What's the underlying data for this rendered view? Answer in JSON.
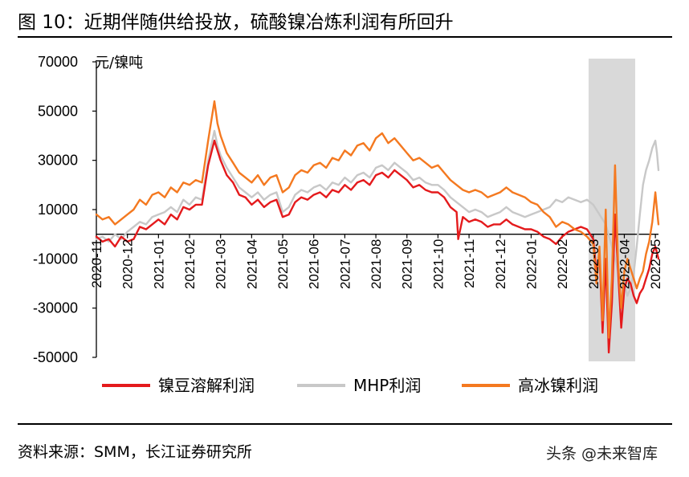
{
  "header": {
    "title": "图 10：近期伴随供给投放，硫酸镍冶炼利润有所回升"
  },
  "footer": {
    "source": "资料来源：SMM，长江证券研究所",
    "watermark": "头条 @未来智库"
  },
  "chart_data": {
    "type": "line",
    "ylabel": "元/镍吨",
    "ylim": [
      -50000,
      70000
    ],
    "yticks": [
      "70000",
      "50000",
      "30000",
      "10000",
      "-10000",
      "-30000",
      "-50000"
    ],
    "ytick_values": [
      70000,
      50000,
      30000,
      10000,
      -10000,
      -30000,
      -50000
    ],
    "xlim": [
      0,
      18.1
    ],
    "xticks": [
      "2020-11",
      "2020-12",
      "2021-01",
      "2021-02",
      "2021-03",
      "2021-04",
      "2021-05",
      "2021-06",
      "2021-07",
      "2021-08",
      "2021-09",
      "2021-10",
      "2021-11",
      "2021-12",
      "2022-01",
      "2022-02",
      "2022-03",
      "2022-04",
      "2022-05"
    ],
    "highlight": {
      "x_start": 15.85,
      "x_end": 17.35,
      "color": "#d9d9d9"
    },
    "legend_position": "bottom",
    "series": [
      {
        "name": "镍豆溶解利润",
        "color": "#e41a1c",
        "points": [
          [
            0,
            -1000
          ],
          [
            0.2,
            -3000
          ],
          [
            0.4,
            -2000
          ],
          [
            0.6,
            -5000
          ],
          [
            0.8,
            -1000
          ],
          [
            1,
            -3000
          ],
          [
            1.2,
            -2000
          ],
          [
            1.4,
            3000
          ],
          [
            1.6,
            2000
          ],
          [
            1.8,
            4000
          ],
          [
            2,
            6000
          ],
          [
            2.2,
            4000
          ],
          [
            2.4,
            8000
          ],
          [
            2.6,
            6000
          ],
          [
            2.8,
            11000
          ],
          [
            3,
            10000
          ],
          [
            3.2,
            12000
          ],
          [
            3.4,
            12000
          ],
          [
            3.6,
            28000
          ],
          [
            3.8,
            38000
          ],
          [
            3.9,
            34000
          ],
          [
            4,
            30000
          ],
          [
            4.2,
            24000
          ],
          [
            4.4,
            21000
          ],
          [
            4.6,
            16000
          ],
          [
            4.8,
            15000
          ],
          [
            5,
            12000
          ],
          [
            5.2,
            14000
          ],
          [
            5.4,
            11000
          ],
          [
            5.6,
            13000
          ],
          [
            5.8,
            14000
          ],
          [
            6,
            7000
          ],
          [
            6.2,
            8000
          ],
          [
            6.4,
            13000
          ],
          [
            6.6,
            15000
          ],
          [
            6.8,
            14000
          ],
          [
            7,
            16000
          ],
          [
            7.2,
            17000
          ],
          [
            7.4,
            15000
          ],
          [
            7.6,
            18000
          ],
          [
            7.8,
            17000
          ],
          [
            8,
            20000
          ],
          [
            8.2,
            18000
          ],
          [
            8.4,
            21000
          ],
          [
            8.6,
            22000
          ],
          [
            8.8,
            20000
          ],
          [
            9,
            24000
          ],
          [
            9.2,
            25000
          ],
          [
            9.4,
            23000
          ],
          [
            9.6,
            26000
          ],
          [
            9.8,
            24000
          ],
          [
            10,
            22000
          ],
          [
            10.2,
            19000
          ],
          [
            10.4,
            20000
          ],
          [
            10.6,
            18000
          ],
          [
            10.8,
            17000
          ],
          [
            11,
            17000
          ],
          [
            11.2,
            15000
          ],
          [
            11.4,
            11000
          ],
          [
            11.6,
            9000
          ],
          [
            11.65,
            -2000
          ],
          [
            11.8,
            7000
          ],
          [
            12,
            5000
          ],
          [
            12.2,
            6000
          ],
          [
            12.4,
            5000
          ],
          [
            12.6,
            3000
          ],
          [
            12.8,
            4000
          ],
          [
            13,
            4000
          ],
          [
            13.2,
            6000
          ],
          [
            13.4,
            4000
          ],
          [
            13.6,
            3000
          ],
          [
            13.8,
            2000
          ],
          [
            14,
            2000
          ],
          [
            14.2,
            1000
          ],
          [
            14.4,
            -1000
          ],
          [
            14.6,
            -2000
          ],
          [
            14.8,
            -4000
          ],
          [
            15,
            -1000
          ],
          [
            15.2,
            1000
          ],
          [
            15.4,
            2000
          ],
          [
            15.6,
            3000
          ],
          [
            15.8,
            2000
          ],
          [
            16,
            -2000
          ],
          [
            16.1,
            -15000
          ],
          [
            16.2,
            -8000
          ],
          [
            16.3,
            -40000
          ],
          [
            16.4,
            -10000
          ],
          [
            16.5,
            -48000
          ],
          [
            16.6,
            -28000
          ],
          [
            16.7,
            8000
          ],
          [
            16.8,
            -15000
          ],
          [
            16.9,
            -38000
          ],
          [
            17,
            -22000
          ],
          [
            17.1,
            -18000
          ],
          [
            17.2,
            -20000
          ],
          [
            17.3,
            -25000
          ],
          [
            17.4,
            -28000
          ],
          [
            17.5,
            -24000
          ],
          [
            17.6,
            -22000
          ],
          [
            17.7,
            -18000
          ],
          [
            17.8,
            -14000
          ],
          [
            17.9,
            -8000
          ],
          [
            18,
            -5000
          ],
          [
            18.1,
            -10000
          ]
        ]
      },
      {
        "name": "MHP利润",
        "color": "#c8c8c8",
        "points": [
          [
            0,
            -2000
          ],
          [
            0.2,
            -1000
          ],
          [
            0.4,
            -3000
          ],
          [
            0.6,
            0
          ],
          [
            0.8,
            -2000
          ],
          [
            1,
            1000
          ],
          [
            1.2,
            3000
          ],
          [
            1.4,
            5000
          ],
          [
            1.6,
            4000
          ],
          [
            1.8,
            7000
          ],
          [
            2,
            8000
          ],
          [
            2.2,
            9000
          ],
          [
            2.4,
            11000
          ],
          [
            2.6,
            9000
          ],
          [
            2.8,
            14000
          ],
          [
            3,
            12000
          ],
          [
            3.2,
            15000
          ],
          [
            3.4,
            14000
          ],
          [
            3.6,
            30000
          ],
          [
            3.8,
            42000
          ],
          [
            3.9,
            36000
          ],
          [
            4,
            32000
          ],
          [
            4.2,
            27000
          ],
          [
            4.4,
            23000
          ],
          [
            4.6,
            19000
          ],
          [
            4.8,
            17000
          ],
          [
            5,
            15000
          ],
          [
            5.2,
            17000
          ],
          [
            5.4,
            14000
          ],
          [
            5.6,
            16000
          ],
          [
            5.8,
            17000
          ],
          [
            6,
            9000
          ],
          [
            6.2,
            11000
          ],
          [
            6.4,
            16000
          ],
          [
            6.6,
            18000
          ],
          [
            6.8,
            17000
          ],
          [
            7,
            19000
          ],
          [
            7.2,
            20000
          ],
          [
            7.4,
            18000
          ],
          [
            7.6,
            21000
          ],
          [
            7.8,
            20000
          ],
          [
            8,
            23000
          ],
          [
            8.2,
            21000
          ],
          [
            8.4,
            24000
          ],
          [
            8.6,
            25000
          ],
          [
            8.8,
            23000
          ],
          [
            9,
            27000
          ],
          [
            9.2,
            28000
          ],
          [
            9.4,
            26000
          ],
          [
            9.6,
            29000
          ],
          [
            9.8,
            27000
          ],
          [
            10,
            25000
          ],
          [
            10.2,
            22000
          ],
          [
            10.4,
            23000
          ],
          [
            10.6,
            21000
          ],
          [
            10.8,
            20000
          ],
          [
            11,
            20000
          ],
          [
            11.2,
            18000
          ],
          [
            11.4,
            15000
          ],
          [
            11.6,
            13000
          ],
          [
            11.8,
            11000
          ],
          [
            12,
            9000
          ],
          [
            12.2,
            10000
          ],
          [
            12.4,
            9000
          ],
          [
            12.6,
            7000
          ],
          [
            12.8,
            8000
          ],
          [
            13,
            9000
          ],
          [
            13.2,
            11000
          ],
          [
            13.4,
            9000
          ],
          [
            13.6,
            8000
          ],
          [
            13.8,
            7000
          ],
          [
            14,
            8000
          ],
          [
            14.2,
            9000
          ],
          [
            14.4,
            10000
          ],
          [
            14.6,
            11000
          ],
          [
            14.8,
            14000
          ],
          [
            15,
            13000
          ],
          [
            15.2,
            15000
          ],
          [
            15.4,
            14000
          ],
          [
            15.6,
            13000
          ],
          [
            15.8,
            14000
          ],
          [
            16,
            12000
          ],
          [
            16.2,
            8000
          ],
          [
            16.4,
            4000
          ],
          [
            16.6,
            -5000
          ],
          [
            16.8,
            -15000
          ],
          [
            17,
            -20000
          ],
          [
            17.1,
            -25000
          ],
          [
            17.2,
            -22000
          ],
          [
            17.3,
            -16000
          ],
          [
            17.4,
            -5000
          ],
          [
            17.5,
            8000
          ],
          [
            17.6,
            20000
          ],
          [
            17.7,
            26000
          ],
          [
            17.8,
            30000
          ],
          [
            17.9,
            35000
          ],
          [
            18,
            38000
          ],
          [
            18.05,
            33000
          ],
          [
            18.1,
            26000
          ]
        ]
      },
      {
        "name": "高冰镍利润",
        "color": "#f47920",
        "points": [
          [
            0,
            8000
          ],
          [
            0.2,
            6000
          ],
          [
            0.4,
            7000
          ],
          [
            0.6,
            4000
          ],
          [
            0.8,
            6000
          ],
          [
            1,
            8000
          ],
          [
            1.2,
            10000
          ],
          [
            1.4,
            14000
          ],
          [
            1.6,
            12000
          ],
          [
            1.8,
            16000
          ],
          [
            2,
            17000
          ],
          [
            2.2,
            15000
          ],
          [
            2.4,
            19000
          ],
          [
            2.6,
            17000
          ],
          [
            2.8,
            21000
          ],
          [
            3,
            20000
          ],
          [
            3.2,
            22000
          ],
          [
            3.4,
            21000
          ],
          [
            3.6,
            38000
          ],
          [
            3.8,
            54000
          ],
          [
            3.9,
            45000
          ],
          [
            4,
            40000
          ],
          [
            4.2,
            33000
          ],
          [
            4.4,
            29000
          ],
          [
            4.6,
            25000
          ],
          [
            4.8,
            23000
          ],
          [
            5,
            21000
          ],
          [
            5.2,
            24000
          ],
          [
            5.4,
            20000
          ],
          [
            5.6,
            23000
          ],
          [
            5.8,
            24000
          ],
          [
            6,
            17000
          ],
          [
            6.2,
            19000
          ],
          [
            6.4,
            24000
          ],
          [
            6.6,
            26000
          ],
          [
            6.8,
            25000
          ],
          [
            7,
            28000
          ],
          [
            7.2,
            29000
          ],
          [
            7.4,
            27000
          ],
          [
            7.6,
            31000
          ],
          [
            7.8,
            30000
          ],
          [
            8,
            34000
          ],
          [
            8.2,
            32000
          ],
          [
            8.4,
            36000
          ],
          [
            8.6,
            37000
          ],
          [
            8.8,
            34000
          ],
          [
            9,
            39000
          ],
          [
            9.2,
            41000
          ],
          [
            9.4,
            37000
          ],
          [
            9.6,
            39000
          ],
          [
            9.8,
            36000
          ],
          [
            10,
            33000
          ],
          [
            10.2,
            30000
          ],
          [
            10.4,
            31000
          ],
          [
            10.6,
            29000
          ],
          [
            10.8,
            27000
          ],
          [
            11,
            28000
          ],
          [
            11.2,
            25000
          ],
          [
            11.4,
            22000
          ],
          [
            11.6,
            20000
          ],
          [
            11.8,
            18000
          ],
          [
            12,
            17000
          ],
          [
            12.2,
            18000
          ],
          [
            12.4,
            17000
          ],
          [
            12.6,
            15000
          ],
          [
            12.8,
            16000
          ],
          [
            13,
            17000
          ],
          [
            13.2,
            19000
          ],
          [
            13.4,
            17000
          ],
          [
            13.6,
            16000
          ],
          [
            13.8,
            15000
          ],
          [
            14,
            13000
          ],
          [
            14.2,
            12000
          ],
          [
            14.4,
            9000
          ],
          [
            14.6,
            7000
          ],
          [
            14.8,
            3000
          ],
          [
            15,
            5000
          ],
          [
            15.2,
            4000
          ],
          [
            15.4,
            2000
          ],
          [
            15.6,
            1000
          ],
          [
            15.8,
            -1000
          ],
          [
            16,
            -4000
          ],
          [
            16.1,
            -20000
          ],
          [
            16.2,
            -5000
          ],
          [
            16.3,
            -35000
          ],
          [
            16.4,
            10000
          ],
          [
            16.5,
            -42000
          ],
          [
            16.6,
            -18000
          ],
          [
            16.7,
            28000
          ],
          [
            16.8,
            -12000
          ],
          [
            16.9,
            -30000
          ],
          [
            17,
            -15000
          ],
          [
            17.1,
            -10000
          ],
          [
            17.2,
            -14000
          ],
          [
            17.3,
            -18000
          ],
          [
            17.4,
            -22000
          ],
          [
            17.5,
            -18000
          ],
          [
            17.6,
            -15000
          ],
          [
            17.7,
            -8000
          ],
          [
            17.8,
            -3000
          ],
          [
            17.9,
            5000
          ],
          [
            18,
            17000
          ],
          [
            18.05,
            10000
          ],
          [
            18.1,
            4000
          ]
        ]
      }
    ]
  }
}
